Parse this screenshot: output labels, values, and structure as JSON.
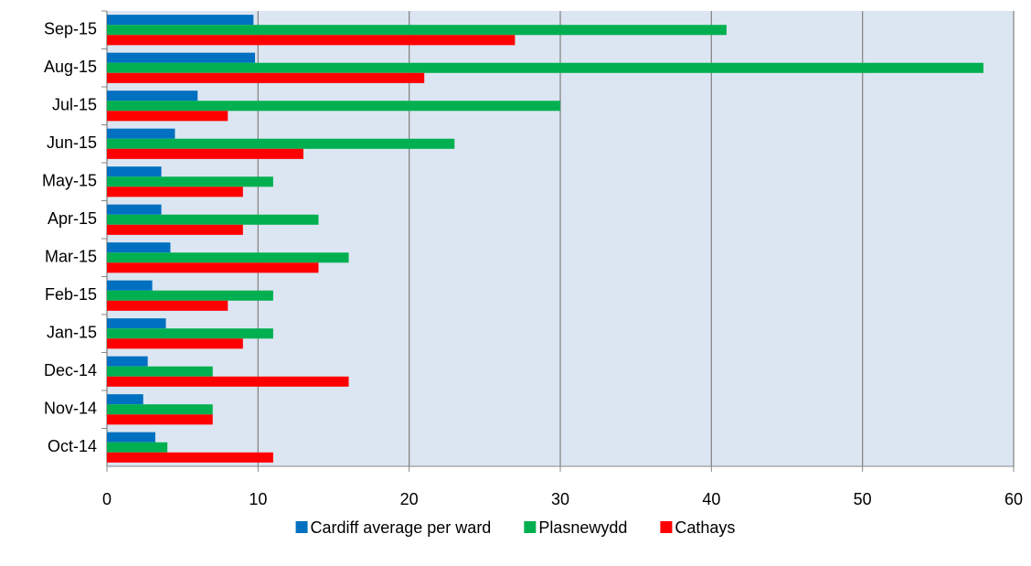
{
  "chart_data": {
    "type": "hbar",
    "categories": [
      "Oct-14",
      "Nov-14",
      "Dec-14",
      "Jan-15",
      "Feb-15",
      "Mar-15",
      "Apr-15",
      "May-15",
      "Jun-15",
      "Jul-15",
      "Aug-15",
      "Sep-15"
    ],
    "series": [
      {
        "name": "Cardiff average per ward",
        "color": "#0070c0",
        "values": [
          3.2,
          2.4,
          2.7,
          3.9,
          3,
          4.2,
          3.6,
          3.6,
          4.5,
          6,
          9.8,
          9.7
        ]
      },
      {
        "name": "Plasnewydd",
        "color": "#00b050",
        "values": [
          4,
          7,
          7,
          11,
          11,
          16,
          14,
          11,
          23,
          30,
          58,
          41
        ]
      },
      {
        "name": "Cathays",
        "color": "#ff0000",
        "values": [
          11,
          7,
          16,
          9,
          8,
          14,
          9,
          9,
          13,
          8,
          21,
          27
        ]
      }
    ],
    "xlim": [
      0,
      60
    ],
    "xticks": [
      0,
      10,
      20,
      30,
      40,
      50,
      60
    ],
    "grid": true,
    "legend": "bottom"
  }
}
